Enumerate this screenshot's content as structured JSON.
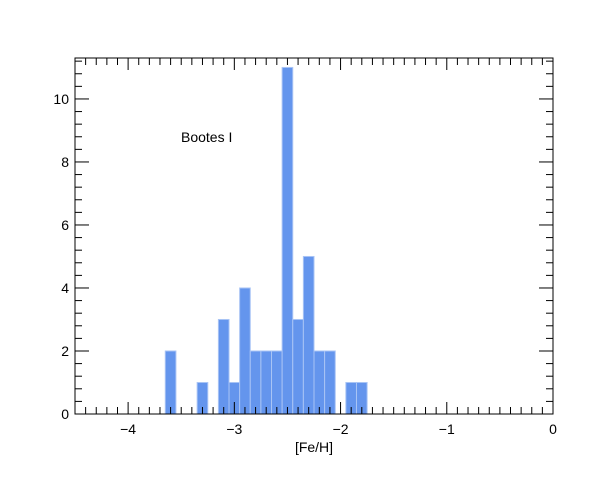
{
  "chart_data": {
    "type": "bar",
    "xlabel": "[Fe/H]",
    "ylabel": "",
    "title": "",
    "annotation": "Bootes I",
    "xlim": [
      -4.5,
      0
    ],
    "ylim": [
      0,
      11.3
    ],
    "x_ticks": [
      -4,
      -3,
      -2,
      -1,
      0
    ],
    "x_tick_labels": [
      "−4",
      "−3",
      "−2",
      "−1",
      "0"
    ],
    "y_ticks": [
      0,
      2,
      4,
      6,
      8,
      10
    ],
    "y_tick_labels": [
      "0",
      "2",
      "4",
      "6",
      "8",
      "10"
    ],
    "bin_width": 0.1,
    "bins": [
      {
        "x0": -3.65,
        "x1": -3.55,
        "count": 2
      },
      {
        "x0": -3.35,
        "x1": -3.25,
        "count": 1
      },
      {
        "x0": -3.15,
        "x1": -3.05,
        "count": 3
      },
      {
        "x0": -3.05,
        "x1": -2.95,
        "count": 1
      },
      {
        "x0": -2.95,
        "x1": -2.85,
        "count": 4
      },
      {
        "x0": -2.85,
        "x1": -2.75,
        "count": 2
      },
      {
        "x0": -2.75,
        "x1": -2.65,
        "count": 2
      },
      {
        "x0": -2.65,
        "x1": -2.55,
        "count": 2
      },
      {
        "x0": -2.55,
        "x1": -2.45,
        "count": 11
      },
      {
        "x0": -2.45,
        "x1": -2.35,
        "count": 3
      },
      {
        "x0": -2.35,
        "x1": -2.25,
        "count": 5
      },
      {
        "x0": -2.25,
        "x1": -2.15,
        "count": 2
      },
      {
        "x0": -2.15,
        "x1": -2.05,
        "count": 2
      },
      {
        "x0": -1.95,
        "x1": -1.85,
        "count": 1
      },
      {
        "x0": -1.85,
        "x1": -1.75,
        "count": 1
      }
    ],
    "bar_color": "#6495ED",
    "bar_edge_color": "#a9c4f5",
    "grid": false
  }
}
